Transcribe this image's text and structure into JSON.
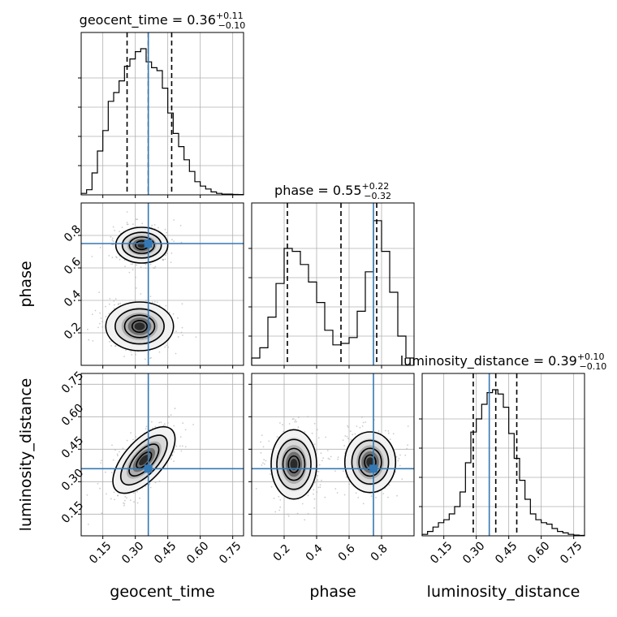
{
  "chart_data": [
    {
      "type": "histogram",
      "parameter": "geocent_time",
      "title": {
        "name": "geocent_time",
        "median": "0.36",
        "upper": "+0.11",
        "lower": "−0.10"
      },
      "xlim": [
        0.05,
        0.8
      ],
      "bin_edges": [
        0.05,
        0.075,
        0.1,
        0.125,
        0.15,
        0.175,
        0.2,
        0.225,
        0.25,
        0.275,
        0.3,
        0.325,
        0.35,
        0.375,
        0.4,
        0.425,
        0.45,
        0.475,
        0.5,
        0.525,
        0.55,
        0.575,
        0.6,
        0.625,
        0.65,
        0.675,
        0.7,
        0.725,
        0.75,
        0.775,
        0.8
      ],
      "density": [
        0.01,
        0.035,
        0.15,
        0.3,
        0.44,
        0.64,
        0.7,
        0.78,
        0.88,
        0.93,
        0.98,
        1.0,
        0.91,
        0.87,
        0.85,
        0.73,
        0.56,
        0.42,
        0.33,
        0.24,
        0.16,
        0.09,
        0.06,
        0.04,
        0.02,
        0.01,
        0.005,
        0.005,
        0.003,
        0.002
      ],
      "quantile_lines": [
        0.262,
        0.36,
        0.468
      ],
      "truth": 0.36,
      "xticks": [
        "0.15",
        "0.30",
        "0.45",
        "0.60",
        "0.75"
      ],
      "xlabel": "geocent_time"
    },
    {
      "type": "histogram",
      "parameter": "phase",
      "title": {
        "name": "phase",
        "median": "0.55",
        "upper": "+0.22",
        "lower": "−0.32"
      },
      "xlim": [
        0.0,
        1.0
      ],
      "bin_edges": [
        0.0,
        0.05,
        0.1,
        0.15,
        0.2,
        0.25,
        0.3,
        0.35,
        0.4,
        0.45,
        0.5,
        0.55,
        0.6,
        0.65,
        0.7,
        0.75,
        0.8,
        0.85,
        0.9,
        0.95,
        1.0
      ],
      "density": [
        0.05,
        0.12,
        0.33,
        0.56,
        0.8,
        0.78,
        0.69,
        0.57,
        0.43,
        0.24,
        0.14,
        0.15,
        0.19,
        0.37,
        0.64,
        0.99,
        0.78,
        0.5,
        0.2,
        0.05
      ],
      "quantile_lines": [
        0.22,
        0.55,
        0.77
      ],
      "truth": 0.75,
      "xticks": [
        "0.2",
        "0.4",
        "0.6",
        "0.8"
      ],
      "xlabel": "phase"
    },
    {
      "type": "histogram",
      "parameter": "luminosity_distance",
      "title": {
        "name": "luminosity_distance",
        "median": "0.39",
        "upper": "+0.10",
        "lower": "−0.10"
      },
      "xlim": [
        0.05,
        0.8
      ],
      "bin_edges": [
        0.05,
        0.075,
        0.1,
        0.125,
        0.15,
        0.175,
        0.2,
        0.225,
        0.25,
        0.275,
        0.3,
        0.325,
        0.35,
        0.375,
        0.4,
        0.425,
        0.45,
        0.475,
        0.5,
        0.525,
        0.55,
        0.575,
        0.6,
        0.625,
        0.65,
        0.675,
        0.7,
        0.725,
        0.75,
        0.775,
        0.8
      ],
      "density": [
        0.01,
        0.03,
        0.06,
        0.09,
        0.11,
        0.15,
        0.2,
        0.3,
        0.5,
        0.71,
        0.8,
        0.9,
        0.98,
        1.0,
        0.97,
        0.88,
        0.7,
        0.53,
        0.38,
        0.25,
        0.15,
        0.11,
        0.09,
        0.08,
        0.05,
        0.03,
        0.02,
        0.01,
        0.005,
        0.003
      ],
      "quantile_lines": [
        0.286,
        0.39,
        0.487
      ],
      "truth": 0.36,
      "xticks": [
        "0.15",
        "0.30",
        "0.45",
        "0.60",
        "0.75"
      ],
      "xlabel": "luminosity_distance"
    },
    {
      "type": "contour",
      "x_parameter": "geocent_time",
      "y_parameter": "phase",
      "xlim": [
        0.05,
        0.8
      ],
      "ylim": [
        0.0,
        1.0
      ],
      "truth": [
        0.36,
        0.75
      ],
      "modes": [
        {
          "center": [
            0.33,
            0.74
          ],
          "x_radius": 0.12,
          "y_radius": 0.11,
          "angle_deg": 0
        },
        {
          "center": [
            0.32,
            0.24
          ],
          "x_radius": 0.15,
          "y_radius": 0.15,
          "angle_deg": 0
        }
      ],
      "yticks": [
        "0.2",
        "0.4",
        "0.6",
        "0.8"
      ],
      "ylabel": "phase"
    },
    {
      "type": "contour",
      "x_parameter": "geocent_time",
      "y_parameter": "luminosity_distance",
      "xlim": [
        0.05,
        0.8
      ],
      "ylim": [
        0.05,
        0.8
      ],
      "truth": [
        0.36,
        0.36
      ],
      "modes": [
        {
          "center": [
            0.34,
            0.4
          ],
          "x_radius": 0.19,
          "y_radius": 0.09,
          "angle_deg": -48
        }
      ],
      "yticks": [
        "0.15",
        "0.30",
        "0.45",
        "0.60",
        "0.75"
      ],
      "ylabel": "luminosity_distance"
    },
    {
      "type": "contour",
      "x_parameter": "phase",
      "y_parameter": "luminosity_distance",
      "xlim": [
        0.0,
        1.0
      ],
      "ylim": [
        0.05,
        0.8
      ],
      "truth": [
        0.75,
        0.36
      ],
      "modes": [
        {
          "center": [
            0.26,
            0.38
          ],
          "x_radius": 0.14,
          "y_radius": 0.16,
          "angle_deg": 0
        },
        {
          "center": [
            0.73,
            0.39
          ],
          "x_radius": 0.15,
          "y_radius": 0.14,
          "angle_deg": 0
        }
      ]
    }
  ],
  "colors": {
    "truth": "#3478b4",
    "hist": "#000000",
    "grid": "#b0b0b0",
    "scatter": "#aaaaaa"
  }
}
